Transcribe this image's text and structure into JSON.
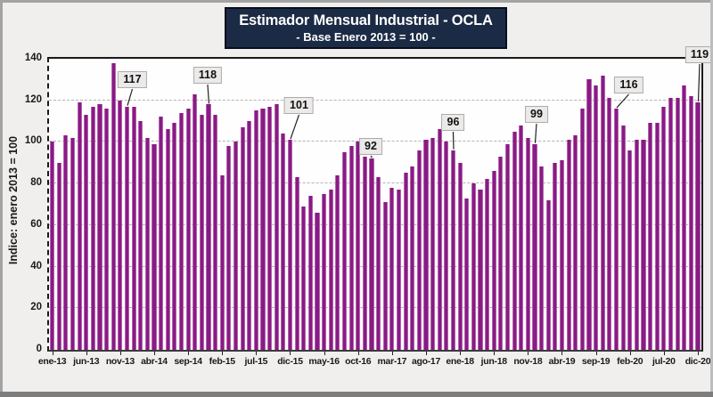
{
  "title": {
    "line1": "Estimador Mensual Industrial - OCLA",
    "line2": "- Base Enero 2013 = 100 -"
  },
  "colors": {
    "bar_fill": "#8a1a86",
    "bar_edge_highlight": "#b266ac",
    "title_background": "#1c2b45",
    "title_text": "#ffffff",
    "plot_background": "#fefefe",
    "page_background": "#f0efed",
    "gridline": "#b4b4b4",
    "axis_text": "#1a1a1a",
    "callout_background": "#eceae9"
  },
  "chart_data": {
    "type": "bar",
    "title": "Estimador Mensual Industrial - OCLA",
    "subtitle": "- Base Enero 2013 = 100 -",
    "ylabel": "Indice: enero 2013 = 100",
    "xlabel": "",
    "ylim": [
      0,
      140
    ],
    "yticks": [
      0,
      20,
      40,
      60,
      80,
      100,
      120,
      140
    ],
    "grid": "horizontal-dashed",
    "legend": "none",
    "categories": [
      "ene-13",
      "feb-13",
      "mar-13",
      "abr-13",
      "may-13",
      "jun-13",
      "jul-13",
      "ago-13",
      "sep-13",
      "oct-13",
      "nov-13",
      "dic-13",
      "ene-14",
      "feb-14",
      "mar-14",
      "abr-14",
      "may-14",
      "jun-14",
      "jul-14",
      "ago-14",
      "sep-14",
      "oct-14",
      "nov-14",
      "dic-14",
      "ene-15",
      "feb-15",
      "mar-15",
      "abr-15",
      "may-15",
      "jun-15",
      "jul-15",
      "ago-15",
      "sep-15",
      "oct-15",
      "nov-15",
      "dic-15",
      "ene-16",
      "feb-16",
      "mar-16",
      "abr-16",
      "may-16",
      "jun-16",
      "jul-16",
      "ago-16",
      "sep-16",
      "oct-16",
      "nov-16",
      "dic-16",
      "ene-17",
      "feb-17",
      "mar-17",
      "abr-17",
      "may-17",
      "jun-17",
      "jul-17",
      "ago-17",
      "sep-17",
      "oct-17",
      "nov-17",
      "dic-17",
      "ene-18",
      "feb-18",
      "mar-18",
      "abr-18",
      "may-18",
      "jun-18",
      "jul-18",
      "ago-18",
      "sep-18",
      "oct-18",
      "nov-18",
      "dic-18",
      "ene-19",
      "feb-19",
      "mar-19",
      "abr-19",
      "may-19",
      "jun-19",
      "jul-19",
      "ago-19",
      "sep-19",
      "oct-19",
      "nov-19",
      "dic-19",
      "ene-20",
      "feb-20",
      "mar-20",
      "abr-20",
      "may-20",
      "jun-20",
      "jul-20",
      "ago-20",
      "sep-20",
      "oct-20",
      "nov-20",
      "dic-20"
    ],
    "values": [
      100,
      90,
      103,
      102,
      119,
      113,
      117,
      118,
      116,
      138,
      120,
      117,
      117,
      110,
      102,
      99,
      112,
      106,
      109,
      114,
      116,
      123,
      113,
      118,
      113,
      84,
      98,
      100,
      107,
      110,
      115,
      116,
      117,
      118,
      104,
      101,
      83,
      69,
      74,
      66,
      75,
      77,
      84,
      95,
      98,
      100,
      93,
      92,
      83,
      71,
      78,
      77,
      85,
      88,
      96,
      101,
      102,
      106,
      100,
      96,
      90,
      73,
      80,
      77,
      82,
      86,
      93,
      99,
      105,
      108,
      102,
      99,
      88,
      72,
      90,
      91,
      101,
      103,
      116,
      130,
      127,
      132,
      121,
      116,
      108,
      96,
      101,
      101,
      109,
      109,
      117,
      121,
      121,
      127,
      122,
      119
    ],
    "xtick_labels": [
      "ene-13",
      "jun-13",
      "nov-13",
      "abr-14",
      "sep-14",
      "feb-15",
      "jul-15",
      "dic-15",
      "may-16",
      "oct-16",
      "mar-17",
      "ago-17",
      "ene-18",
      "jun-18",
      "nov-18",
      "abr-19",
      "sep-19",
      "feb-20",
      "jul-20",
      "dic-20"
    ],
    "xtick_every": 5,
    "callouts": [
      {
        "category": "dic-13",
        "label": "117"
      },
      {
        "category": "dic-14",
        "label": "118"
      },
      {
        "category": "dic-15",
        "label": "101"
      },
      {
        "category": "dic-16",
        "label": "92"
      },
      {
        "category": "dic-17",
        "label": "96"
      },
      {
        "category": "dic-18",
        "label": "99"
      },
      {
        "category": "dic-19",
        "label": "116"
      },
      {
        "category": "dic-20",
        "label": "119"
      }
    ]
  }
}
